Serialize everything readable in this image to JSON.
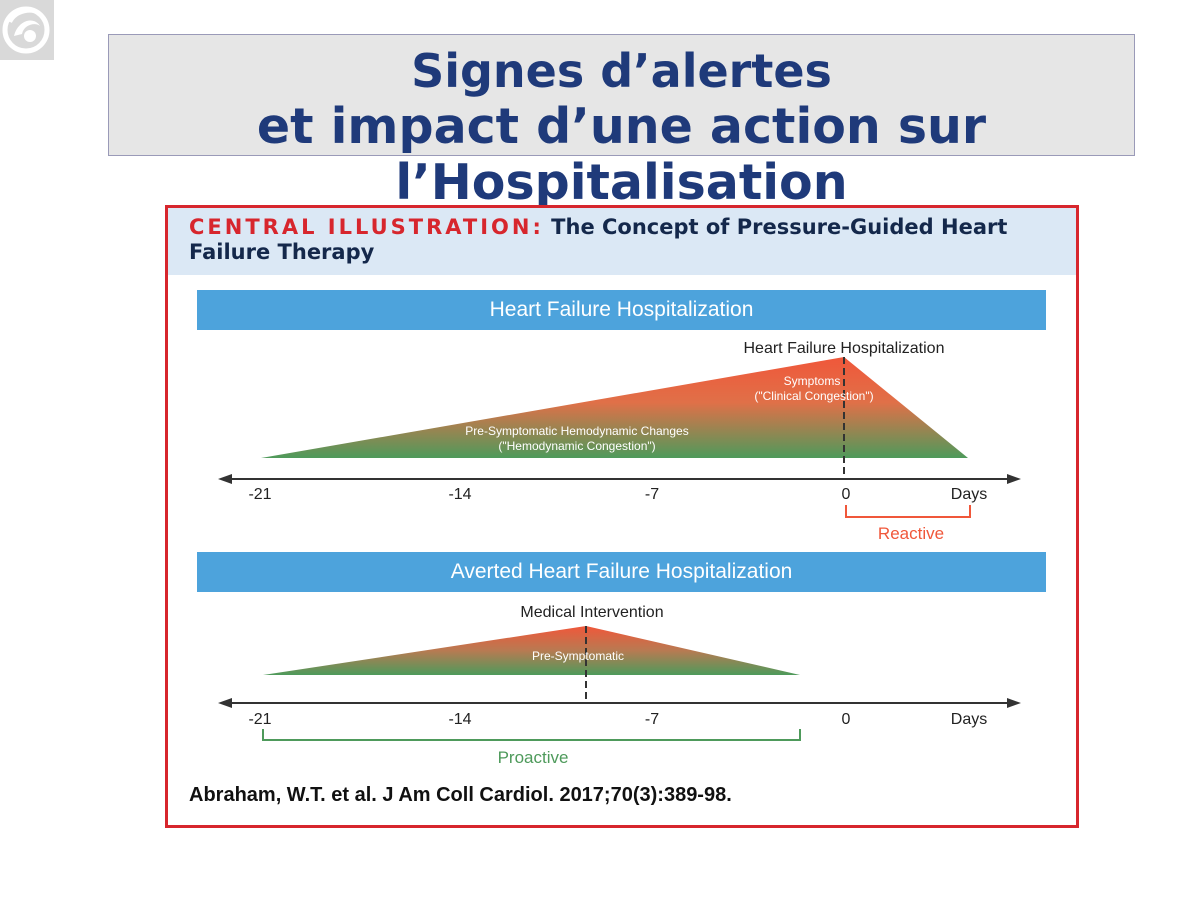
{
  "slide": {
    "title_line1": "Signes d’alertes",
    "title_line2": "et impact d’une action sur l’Hospitalisation",
    "logo_icon": "organization-logo-icon"
  },
  "figure": {
    "label": "CENTRAL ILLUSTRATION:",
    "title": "The Concept of Pressure-Guided Heart Failure Therapy",
    "citation": "Abraham, W.T. et al. J Am Coll Cardiol. 2017;70(3):389-98.",
    "colors": {
      "border": "#d7262d",
      "banner": "#4da3dc",
      "header_bg": "#dbe8f5",
      "red": "#f0573a",
      "green": "#4e9a5b"
    },
    "panels": [
      {
        "banner": "Heart Failure Hospitalization",
        "peak_label": "Heart Failure Hospitalization",
        "region1_label_line1": "Pre-Symptomatic Hemodynamic Changes",
        "region1_label_line2": "(\"Hemodynamic Congestion\")",
        "region2_label_line1": "Symptoms",
        "region2_label_line2": "(\"Clinical Congestion\")",
        "axis_ticks": [
          "-21",
          "-14",
          "-7",
          "0"
        ],
        "axis_unit": "Days",
        "bracket_label": "Reactive",
        "triangle_days": {
          "start": -21,
          "peak": 0,
          "end": 4.5
        }
      },
      {
        "banner": "Averted Heart Failure Hospitalization",
        "peak_label": "Medical Intervention",
        "region1_label_line1": "Pre-Symptomatic",
        "axis_ticks": [
          "-21",
          "-14",
          "-7",
          "0"
        ],
        "axis_unit": "Days",
        "bracket_label": "Proactive",
        "triangle_days": {
          "start": -21,
          "peak": -9.1,
          "end": -1.6
        }
      }
    ]
  }
}
